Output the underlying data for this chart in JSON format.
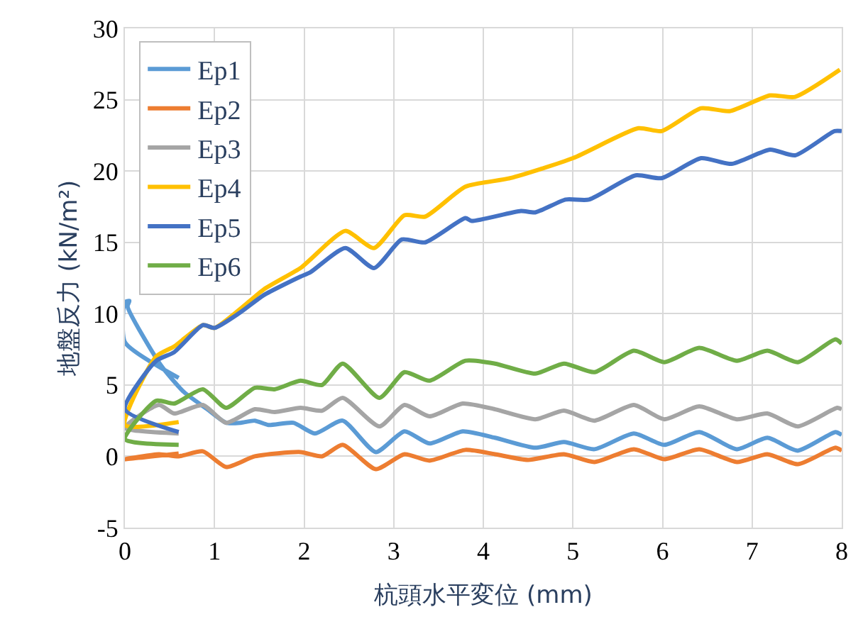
{
  "chart_data": {
    "type": "line",
    "xlabel": "杭頭水平変位 (mm)",
    "ylabel": "地盤反力 (kN/m²)",
    "xlim": [
      0,
      8
    ],
    "xticks": [
      0,
      1,
      2,
      3,
      4,
      5,
      6,
      7,
      8
    ],
    "ylim": [
      -5,
      30
    ],
    "yticks": [
      -5,
      0,
      5,
      10,
      15,
      20,
      25,
      30
    ],
    "grid": true,
    "legend": "top left",
    "marker": "none",
    "line_style": "solid",
    "series": [
      {
        "name": "Ep1",
        "color": "#5b9bd5",
        "x": [
          0.6,
          0,
          0,
          0.05,
          0.03,
          0.4,
          0.66,
          0.92,
          1.13,
          1.29,
          1.45,
          1.6,
          1.88,
          2.12,
          2.43,
          2.8,
          3.12,
          3.4,
          3.77,
          4.13,
          4.58,
          4.9,
          5.24,
          5.68,
          6.02,
          6.41,
          6.83,
          7.17,
          7.51,
          7.93,
          8.0
        ],
        "values": [
          5.5,
          8.0,
          10.8,
          10.9,
          10.5,
          6.4,
          4.5,
          3.3,
          2.35,
          2.35,
          2.5,
          2.2,
          2.35,
          1.6,
          2.5,
          0.3,
          1.75,
          0.9,
          1.75,
          1.3,
          0.6,
          1.0,
          0.5,
          1.6,
          0.8,
          1.7,
          0.5,
          1.3,
          0.4,
          1.7,
          1.5
        ]
      },
      {
        "name": "Ep2",
        "color": "#ed7d31",
        "x": [
          0.6,
          0,
          0.38,
          0.6,
          0.87,
          1.13,
          1.45,
          1.96,
          2.2,
          2.43,
          2.8,
          3.12,
          3.4,
          3.8,
          4.13,
          4.5,
          4.9,
          5.24,
          5.68,
          6.02,
          6.41,
          6.83,
          7.17,
          7.51,
          7.93,
          8.0
        ],
        "values": [
          0.2,
          -0.2,
          0.15,
          0.0,
          0.35,
          -0.75,
          0.0,
          0.3,
          0.0,
          0.8,
          -0.9,
          0.15,
          -0.3,
          0.45,
          0.15,
          -0.25,
          0.15,
          -0.4,
          0.5,
          -0.2,
          0.5,
          -0.4,
          0.15,
          -0.55,
          0.6,
          0.4
        ]
      },
      {
        "name": "Ep3",
        "color": "#a5a5a5",
        "x": [
          0.6,
          0,
          0.38,
          0.55,
          0.87,
          1.13,
          1.45,
          1.67,
          1.96,
          2.2,
          2.43,
          2.84,
          3.12,
          3.4,
          3.77,
          4.13,
          4.58,
          4.9,
          5.24,
          5.68,
          6.02,
          6.41,
          6.83,
          7.17,
          7.51,
          7.95,
          8.0
        ],
        "values": [
          1.6,
          2.0,
          3.6,
          3.0,
          3.6,
          2.35,
          3.3,
          3.1,
          3.4,
          3.2,
          4.1,
          2.1,
          3.6,
          2.8,
          3.7,
          3.3,
          2.6,
          3.2,
          2.5,
          3.6,
          2.6,
          3.5,
          2.6,
          3.0,
          2.1,
          3.4,
          3.3
        ]
      },
      {
        "name": "Ep4",
        "color": "#ffc000",
        "x": [
          0.6,
          0,
          0.35,
          0.55,
          0.87,
          1.0,
          1.3,
          1.55,
          1.96,
          2.07,
          2.46,
          2.78,
          3.12,
          3.35,
          3.8,
          4.3,
          5.0,
          5.73,
          5.99,
          6.43,
          6.75,
          7.2,
          7.48,
          7.98
        ],
        "values": [
          2.4,
          2.2,
          7.0,
          7.7,
          9.2,
          9.0,
          10.4,
          11.7,
          13.2,
          13.8,
          15.8,
          14.6,
          16.9,
          16.8,
          18.9,
          19.5,
          20.9,
          23.0,
          22.8,
          24.4,
          24.2,
          25.3,
          25.2,
          27.1
        ]
      },
      {
        "name": "Ep5",
        "color": "#4472c4",
        "x": [
          0.6,
          0,
          0.35,
          0.55,
          0.87,
          1.0,
          1.29,
          1.55,
          1.96,
          2.07,
          2.46,
          2.78,
          3.09,
          3.35,
          3.8,
          3.87,
          4.42,
          4.58,
          4.92,
          5.18,
          5.7,
          5.99,
          6.43,
          6.77,
          7.2,
          7.48,
          7.92,
          8.0
        ],
        "values": [
          1.7,
          3.3,
          6.7,
          7.3,
          9.2,
          9.0,
          10.1,
          11.3,
          12.6,
          12.9,
          14.6,
          13.2,
          15.2,
          15.0,
          16.7,
          16.5,
          17.2,
          17.1,
          18.0,
          18.0,
          19.7,
          19.5,
          20.9,
          20.5,
          21.5,
          21.1,
          22.8,
          22.8
        ]
      },
      {
        "name": "Ep6",
        "color": "#70ad47",
        "x": [
          0.6,
          0,
          0.35,
          0.55,
          0.87,
          1.13,
          1.45,
          1.67,
          1.96,
          2.2,
          2.43,
          2.84,
          3.12,
          3.4,
          3.8,
          4.13,
          4.58,
          4.9,
          5.24,
          5.68,
          6.02,
          6.41,
          6.83,
          7.17,
          7.51,
          7.93,
          8.0
        ],
        "values": [
          0.8,
          1.2,
          3.9,
          3.7,
          4.7,
          3.4,
          4.8,
          4.7,
          5.3,
          5.0,
          6.5,
          4.1,
          5.9,
          5.3,
          6.7,
          6.5,
          5.8,
          6.5,
          5.9,
          7.4,
          6.6,
          7.6,
          6.7,
          7.4,
          6.6,
          8.2,
          7.9
        ]
      }
    ]
  }
}
